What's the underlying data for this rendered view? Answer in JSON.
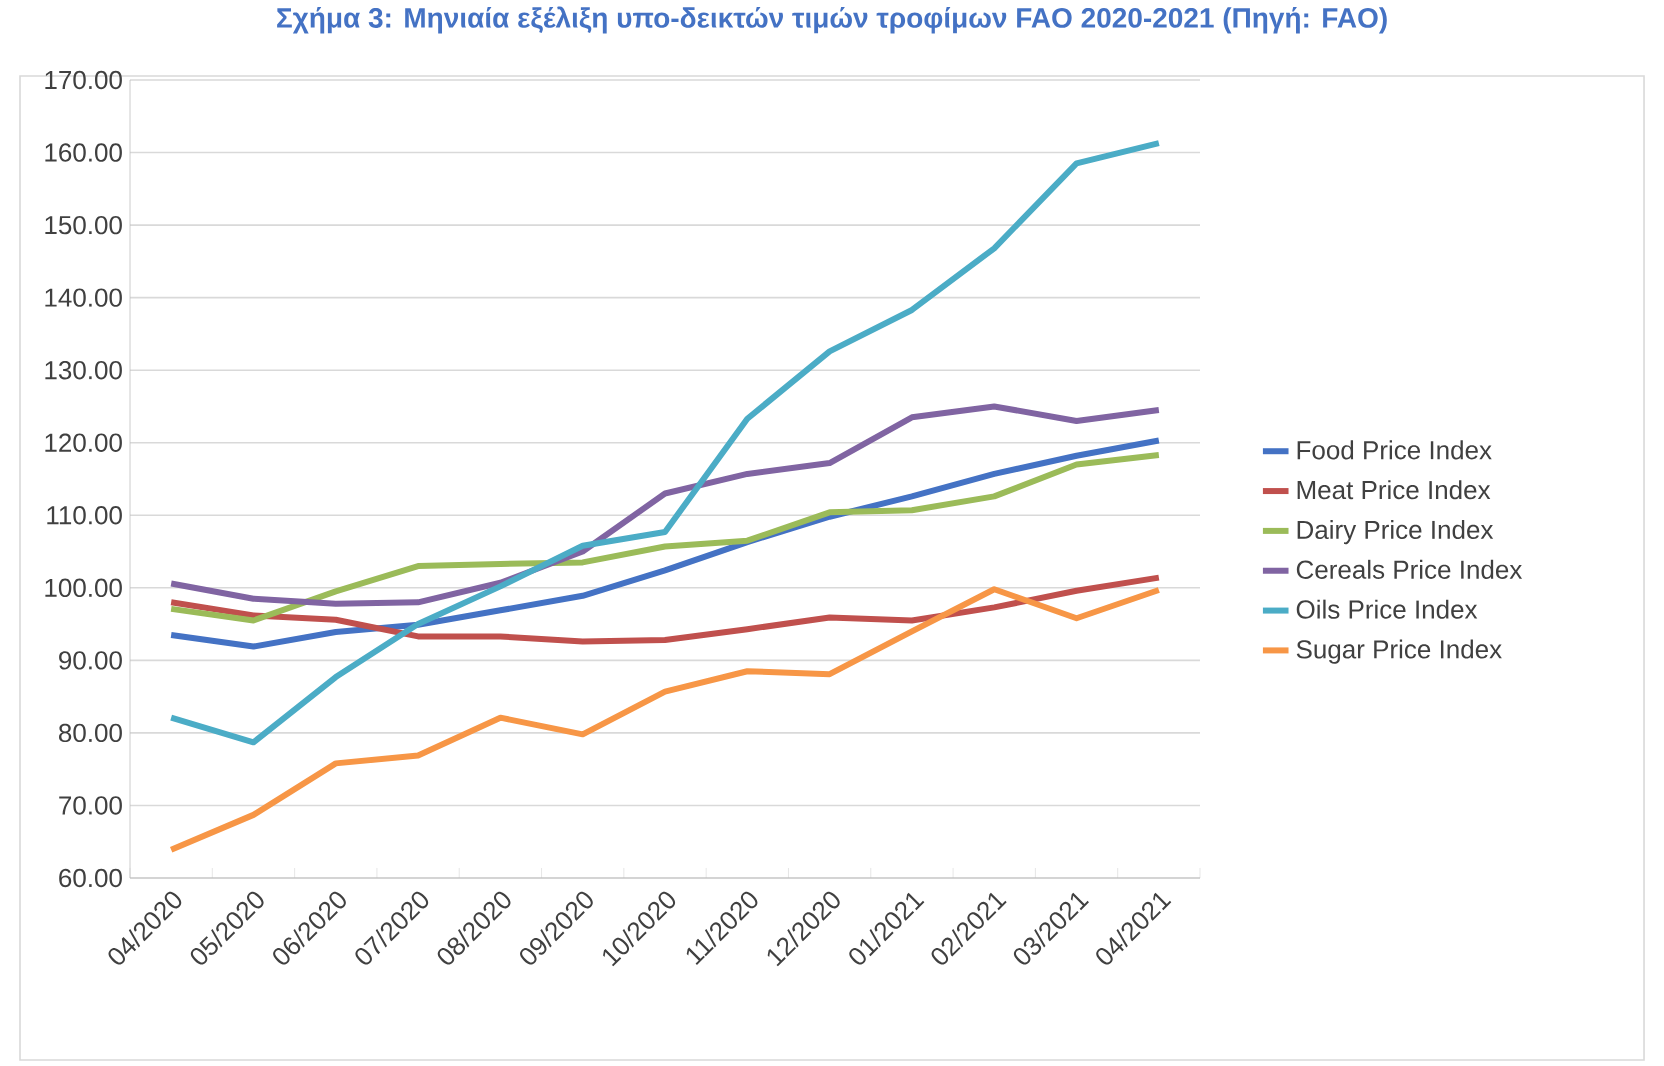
{
  "chart_data": {
    "type": "line",
    "title": "Σχήμα 3: Μηνιαία εξέλιξη υπο-δεικτών τιμών τροφίμων FAO 2020-2021 (Πηγή: FAO)",
    "categories": [
      "04/2020",
      "05/2020",
      "06/2020",
      "07/2020",
      "08/2020",
      "09/2020",
      "10/2020",
      "11/2020",
      "12/2020",
      "01/2021",
      "02/2021",
      "03/2021",
      "04/2021"
    ],
    "series": [
      {
        "name": "Food Price Index",
        "color": "#4472c4",
        "values": [
          93.5,
          91.9,
          93.9,
          94.9,
          96.9,
          98.9,
          102.4,
          106.3,
          109.8,
          112.6,
          115.7,
          118.2,
          120.3
        ]
      },
      {
        "name": "Meat Price Index",
        "color": "#c0504d",
        "values": [
          98.0,
          96.2,
          95.6,
          93.3,
          93.3,
          92.6,
          92.8,
          94.3,
          95.9,
          95.5,
          97.3,
          99.6,
          101.4
        ]
      },
      {
        "name": "Dairy Price Index",
        "color": "#9bbb59",
        "values": [
          97.1,
          95.5,
          99.5,
          103.0,
          103.3,
          103.5,
          105.7,
          106.5,
          110.4,
          110.7,
          112.6,
          117.0,
          118.3
        ]
      },
      {
        "name": "Cereals Price Index",
        "color": "#8064a2",
        "values": [
          100.6,
          98.5,
          97.8,
          98.0,
          100.7,
          105.0,
          113.0,
          115.7,
          117.2,
          123.5,
          125.0,
          123.0,
          124.5
        ]
      },
      {
        "name": "Oils Price Index",
        "color": "#4bacc6",
        "values": [
          82.1,
          78.7,
          87.7,
          95.0,
          100.2,
          105.8,
          107.7,
          123.3,
          132.6,
          138.3,
          146.8,
          158.5,
          161.3
        ]
      },
      {
        "name": "Sugar Price Index",
        "color": "#f79646",
        "values": [
          63.9,
          68.7,
          75.8,
          76.9,
          82.1,
          79.8,
          85.7,
          88.5,
          88.1,
          94.0,
          99.8,
          95.8,
          99.7
        ]
      }
    ],
    "ylim": [
      60,
      170
    ],
    "yticks": [
      {
        "value": 60,
        "label": "60.00"
      },
      {
        "value": 70,
        "label": "70.00"
      },
      {
        "value": 80,
        "label": "80.00"
      },
      {
        "value": 90,
        "label": "90.00"
      },
      {
        "value": 100,
        "label": "100.00"
      },
      {
        "value": 110,
        "label": "110.00"
      },
      {
        "value": 120,
        "label": "120.00"
      },
      {
        "value": 130,
        "label": "130.00"
      },
      {
        "value": 140,
        "label": "140.00"
      },
      {
        "value": 150,
        "label": "150.00"
      },
      {
        "value": 160,
        "label": "160.00"
      },
      {
        "value": 170,
        "label": "170.00"
      }
    ],
    "grid": "y",
    "legend": "right",
    "marker": "none",
    "line_style": "solid"
  }
}
